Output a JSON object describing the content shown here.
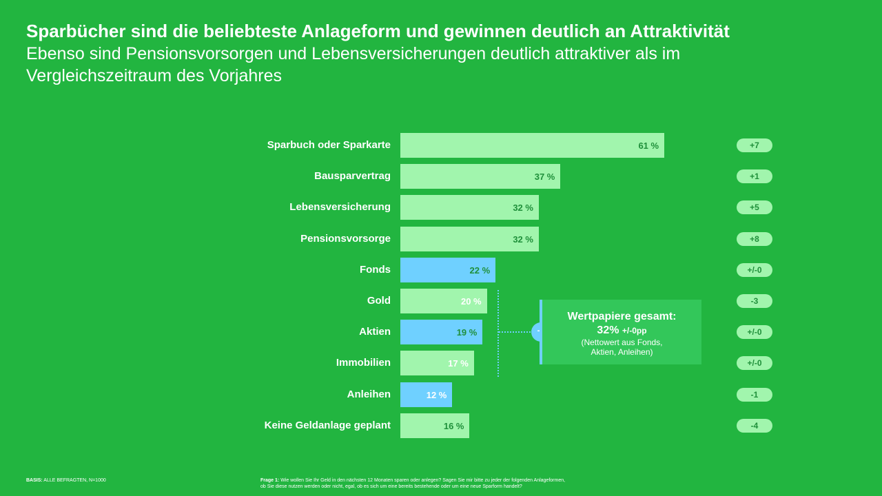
{
  "header": {
    "title": "Sparbücher sind die beliebteste Anlageform und gewinnen deutlich an Attraktivität",
    "subtitle": "Ebenso sind Pensionsvorsorgen und Lebensversicherungen deutlich attraktiver als im Vergleichszeitraum des Vorjahres"
  },
  "colors": {
    "background": "#22b540",
    "bar_default": "#a1f5ad",
    "bar_securities": "#6fd0ff",
    "value_dark": "#1f8f3a",
    "value_light": "#ffffff",
    "callout_bg": "#33c75a"
  },
  "chart_data": {
    "type": "bar",
    "orientation": "horizontal",
    "unit": "%",
    "xlim": [
      0,
      100
    ],
    "grid": false,
    "categories": [
      "Sparbuch oder Sparkarte",
      "Bausparvertrag",
      "Lebensversicherung",
      "Pensionsvorsorge",
      "Fonds",
      "Gold",
      "Aktien",
      "Immobilien",
      "Anleihen",
      "Keine Geldanlage geplant"
    ],
    "values": [
      61,
      37,
      32,
      32,
      22,
      20,
      19,
      17,
      12,
      16
    ],
    "value_labels": [
      "61 %",
      "37 %",
      "32 %",
      "32 %",
      "22 %",
      "20 %",
      "19 %",
      "17 %",
      "12 %",
      "16 %"
    ],
    "securities": [
      false,
      false,
      false,
      false,
      true,
      false,
      true,
      false,
      true,
      false
    ],
    "light_value_text": [
      false,
      false,
      false,
      false,
      false,
      true,
      false,
      true,
      true,
      false
    ],
    "changes": [
      "+7",
      "+1",
      "+5",
      "+8",
      "+/-0",
      "-3",
      "+/-0",
      "+/-0",
      "-1",
      "-4"
    ]
  },
  "callout": {
    "icon": "plus-icon",
    "title": "Wertpapiere gesamt:",
    "value": "32%",
    "delta": "+/-0pp",
    "note_line1": "(Nettowert aus Fonds,",
    "note_line2": "Aktien, Anleihen)"
  },
  "footer": {
    "basis_label": "BASIS:",
    "basis_text": "ALLE BEFRAGTEN, N=1000",
    "question_label": "Frage 1:",
    "question_line1": "Wie wollen Sie Ihr Geld in den nächsten 12 Monaten sparen oder anlegen? Sagen Sie mir bitte zu jeder der folgenden Anlageformen,",
    "question_line2": "ob Sie diese nutzen werden oder nicht, egal, ob es sich um eine bereits bestehende oder um eine neue Sparform handelt?"
  }
}
